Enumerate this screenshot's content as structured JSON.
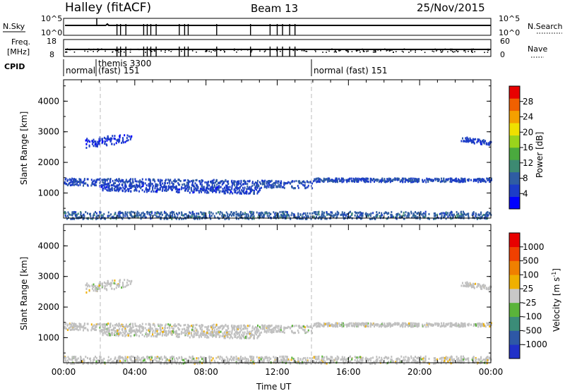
{
  "header": {
    "title": "Halley (fitACF)",
    "beam": "Beam 13",
    "date": "25/Nov/2015"
  },
  "panels": {
    "nsky_label": "N.Sky",
    "nsky_ticks": [
      "10^5",
      "10^0"
    ],
    "nsearch_label": "N.Search",
    "nsearch_ticks": [
      "10^5",
      "10^0"
    ],
    "freq_label_1": "Freq.",
    "freq_label_2": "[MHz]",
    "freq_ticks": [
      "18",
      "8"
    ],
    "nave_label": "Nave",
    "nave_ticks": [
      "60",
      "0"
    ],
    "cpid_label": "CPID"
  },
  "cpid_segments": [
    {
      "start_h": 0.0,
      "text": "normal"
    },
    {
      "start_h": 1.9,
      "text": "themis 3300"
    },
    {
      "start_h": 1.9,
      "text": "(fast) 151"
    },
    {
      "start_h": 14.0,
      "text": "normal (fast) 151"
    }
  ],
  "power_colorbar": {
    "label": "Power [dB]",
    "ticks": [
      "28",
      "24",
      "20",
      "16",
      "12",
      "8",
      "4"
    ],
    "colors": [
      "#0000ff",
      "#1c3cc8",
      "#2f5da3",
      "#3d8a72",
      "#4aaa3e",
      "#9ad41c",
      "#f0e000",
      "#f5a000",
      "#f06000",
      "#e80000"
    ]
  },
  "velocity_colorbar": {
    "label": "Velocity [m s^-1]",
    "ticks": [
      "1000",
      "500",
      "100",
      "25",
      "-25",
      "-100",
      "-500",
      "-1000"
    ],
    "colors": [
      "#2030c8",
      "#2e58a6",
      "#3b8c78",
      "#5ab43a",
      "#c8c8c8",
      "#f0b000",
      "#f08000",
      "#f04000",
      "#e80000"
    ]
  },
  "chart_data": [
    {
      "type": "heatmap",
      "name": "Power",
      "ylabel": "Slant Range [km]",
      "yticks": [
        "4000",
        "3000",
        "2000",
        "1000"
      ],
      "ylim": [
        180,
        4700
      ],
      "xlim_hours": [
        0,
        24
      ],
      "scatter_bands": [
        {
          "h_start": 0.0,
          "h_end": 14.0,
          "range_center_start": 1400,
          "range_center_end": 1300,
          "spread": 120,
          "power_db": 6
        },
        {
          "h_start": 2.0,
          "h_end": 11.0,
          "range_center_start": 1200,
          "range_center_end": 1100,
          "spread": 100,
          "power_db": 5
        },
        {
          "h_start": 14.0,
          "h_end": 24.0,
          "range_center_start": 1450,
          "range_center_end": 1450,
          "spread": 60,
          "power_db": 6
        },
        {
          "h_start": 1.2,
          "h_end": 3.9,
          "range_center_start": 2650,
          "range_center_end": 2850,
          "spread": 150,
          "power_db": 4
        },
        {
          "h_start": 22.3,
          "h_end": 24.0,
          "range_center_start": 2800,
          "range_center_end": 2650,
          "spread": 80,
          "power_db": 5
        },
        {
          "h_start": 0.0,
          "h_end": 24.0,
          "range_center_start": 300,
          "range_center_end": 300,
          "spread": 120,
          "power_db": 8
        }
      ]
    },
    {
      "type": "heatmap",
      "name": "Velocity",
      "ylabel": "Slant Range [km]",
      "xlabel": "Time UT",
      "yticks": [
        "4000",
        "3000",
        "2000",
        "1000"
      ],
      "xticks": [
        "00:00",
        "04:00",
        "08:00",
        "12:00",
        "16:00",
        "20:00",
        "00:00"
      ],
      "ylim": [
        180,
        4700
      ],
      "xlim_hours": [
        0,
        24
      ],
      "dominant_velocity_range_ms": [
        -25,
        25
      ]
    }
  ]
}
